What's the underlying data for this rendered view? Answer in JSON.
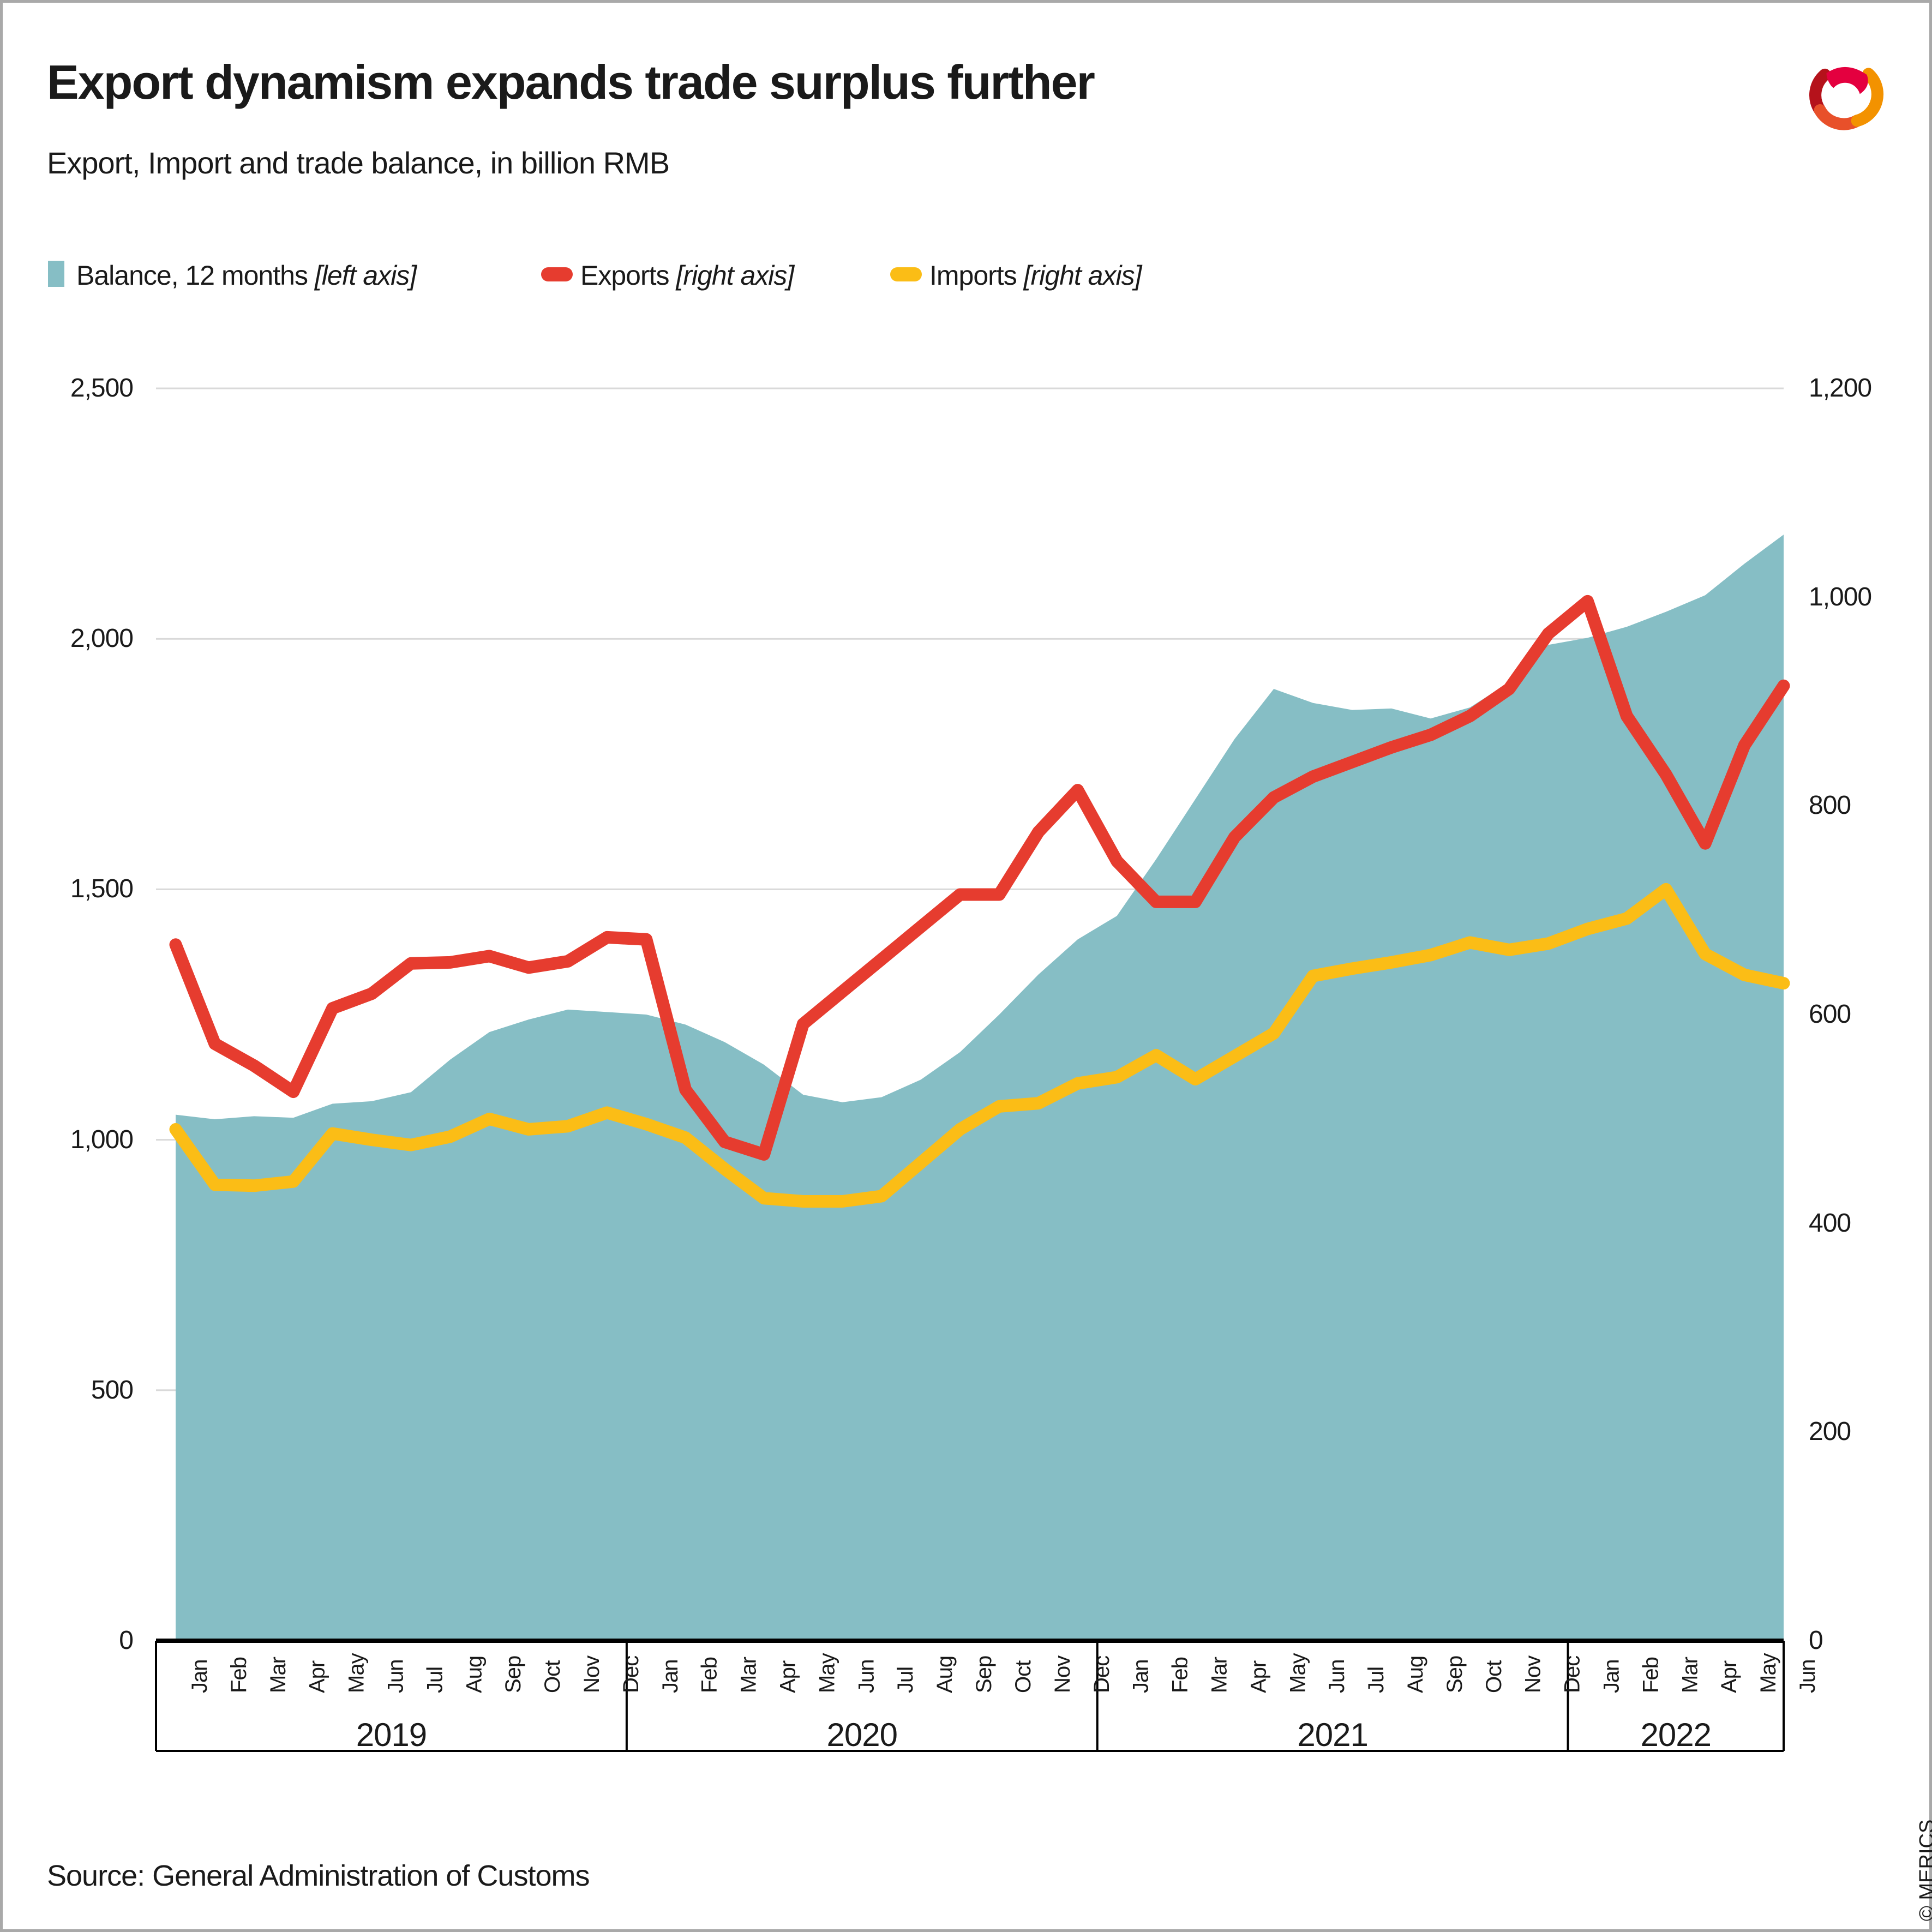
{
  "header": {
    "title": "Export dynamism expands trade surplus further",
    "subtitle": "Export, Import and trade balance, in billion RMB"
  },
  "legend": [
    {
      "label": "Balance, 12 months",
      "axis_note": "[left axis]",
      "color": "#86BEC5",
      "marker": "square"
    },
    {
      "label": "Exports",
      "axis_note": "[right axis]",
      "color": "#E63C2F",
      "marker": "dash"
    },
    {
      "label": "Imports",
      "axis_note": "[right axis]",
      "color": "#FBBD16",
      "marker": "dash"
    }
  ],
  "chart_data": {
    "type": "area",
    "subtype": "combo: area (left axis) + 2 lines (right axis)",
    "title": "Export, Import and trade balance, in billion RMB",
    "months": [
      "2019-01",
      "2019-02",
      "2019-03",
      "2019-04",
      "2019-05",
      "2019-06",
      "2019-07",
      "2019-08",
      "2019-09",
      "2019-10",
      "2019-11",
      "2019-12",
      "2020-01",
      "2020-02",
      "2020-03",
      "2020-04",
      "2020-05",
      "2020-06",
      "2020-07",
      "2020-08",
      "2020-09",
      "2020-10",
      "2020-11",
      "2020-12",
      "2021-01",
      "2021-02",
      "2021-03",
      "2021-04",
      "2021-05",
      "2021-06",
      "2021-07",
      "2021-08",
      "2021-09",
      "2021-10",
      "2021-11",
      "2021-12",
      "2022-01",
      "2022-02",
      "2022-03",
      "2022-04",
      "2022-05",
      "2022-06"
    ],
    "series": [
      {
        "name": "Balance, 12 months",
        "axis": "left",
        "type": "area",
        "color": "#86BEC5",
        "values": [
          1050,
          1041,
          1047,
          1044,
          1072,
          1077,
          1095,
          1160,
          1215,
          1240,
          1260,
          1255,
          1250,
          1230,
          1195,
          1150,
          1090,
          1075,
          1085,
          1120,
          1175,
          1250,
          1330,
          1400,
          1447,
          1560,
          1680,
          1800,
          1900,
          1872,
          1858,
          1861,
          1841,
          1863,
          1913,
          1988,
          2002,
          2024,
          2054,
          2087,
          2150,
          2208
        ]
      },
      {
        "name": "Exports",
        "axis": "right",
        "type": "line",
        "color": "#E63C2F",
        "values": [
          667,
          572,
          551,
          526,
          606,
          620,
          649,
          650,
          656,
          645,
          651,
          674,
          672,
          528,
          478,
          466,
          591,
          622,
          653,
          684,
          715,
          715,
          775,
          815,
          747,
          708,
          708,
          770,
          808,
          828,
          842,
          856,
          868,
          886,
          912,
          965,
          996,
          886,
          830,
          764,
          858,
          915
        ]
      },
      {
        "name": "Imports",
        "axis": "right",
        "type": "line",
        "color": "#FBBD16",
        "values": [
          490,
          437,
          436,
          440,
          486,
          480,
          475,
          483,
          500,
          490,
          493,
          506,
          495,
          482,
          452,
          424,
          421,
          421,
          426,
          458,
          490,
          512,
          515,
          534,
          540,
          561,
          538,
          560,
          582,
          637,
          644,
          650,
          657,
          669,
          662,
          668,
          682,
          692,
          720,
          658,
          638,
          630
        ]
      }
    ],
    "left_axis": {
      "min": 0,
      "max": 2500,
      "ticks": [
        0,
        500,
        1000,
        1500,
        2000,
        2500
      ],
      "tick_labels": [
        "0",
        "500",
        "1,000",
        "1,500",
        "2,000",
        "2,500"
      ]
    },
    "right_axis": {
      "min": 0,
      "max": 1200,
      "ticks": [
        0,
        200,
        400,
        600,
        800,
        1000,
        1200
      ],
      "tick_labels": [
        "0",
        "200",
        "400",
        "600",
        "800",
        "1,000",
        "1,200"
      ]
    },
    "grid": "horizontal gridlines at left-axis ticks",
    "legend_position": "top-left above plot",
    "x_axis": {
      "years": [
        {
          "label": "2019",
          "months": [
            "Jan",
            "Feb",
            "Mar",
            "Apr",
            "May",
            "Jun",
            "Jul",
            "Aug",
            "Sep",
            "Oct",
            "Nov",
            "Dec"
          ]
        },
        {
          "label": "2020",
          "months": [
            "Jan",
            "Feb",
            "Mar",
            "Apr",
            "May",
            "Jun",
            "Jul",
            "Aug",
            "Sep",
            "Oct",
            "Nov",
            "Dec"
          ]
        },
        {
          "label": "2021",
          "months": [
            "Jan",
            "Feb",
            "Mar",
            "Apr",
            "May",
            "Jun",
            "Jul",
            "Aug",
            "Sep",
            "Oct",
            "Nov",
            "Dec"
          ]
        },
        {
          "label": "2022",
          "months": [
            "Jan",
            "Feb",
            "Mar",
            "Apr",
            "May",
            "Jun"
          ]
        }
      ]
    }
  },
  "colors": {
    "balance": "#86BEC5",
    "exports": "#E63C2F",
    "imports": "#FBBD16",
    "gridline": "#D9D9D9",
    "axis": "#000000",
    "text": "#1A1A1A",
    "border": "#A9A9A9",
    "logo": [
      "#B5121B",
      "#E8502A",
      "#F39200",
      "#E4003F"
    ]
  },
  "footer": {
    "source": "Source: General Administration of Customs",
    "copyright": "© MERICS"
  }
}
